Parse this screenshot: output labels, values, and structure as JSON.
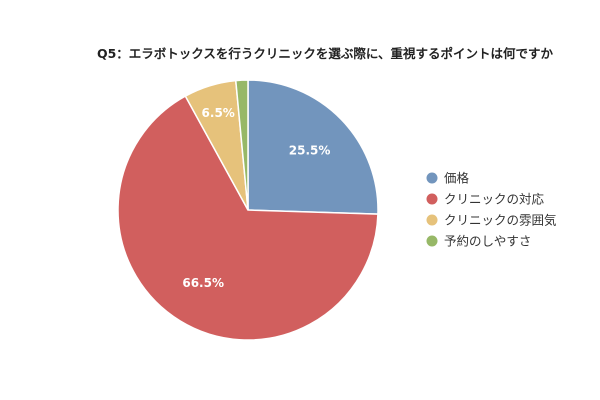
{
  "chart_data": {
    "type": "pie",
    "title": "Q5：エラボトックスを行うクリニックを選ぶ際に、重視するポイントは何ですか",
    "slices": [
      {
        "name": "価格",
        "value": 25.5,
        "label": "25.5%",
        "color": "#7295bd"
      },
      {
        "name": "クリニックの対応",
        "value": 66.5,
        "label": "66.5%",
        "color": "#d15f5e"
      },
      {
        "name": "クリニックの雰囲気",
        "value": 6.5,
        "label": "6.5%",
        "color": "#e6c27b"
      },
      {
        "name": "予約のしやすさ",
        "value": 1.5,
        "label": "",
        "color": "#97b867"
      }
    ],
    "start_angle": "12 o'clock",
    "direction": "clockwise",
    "legend_position": "right"
  }
}
